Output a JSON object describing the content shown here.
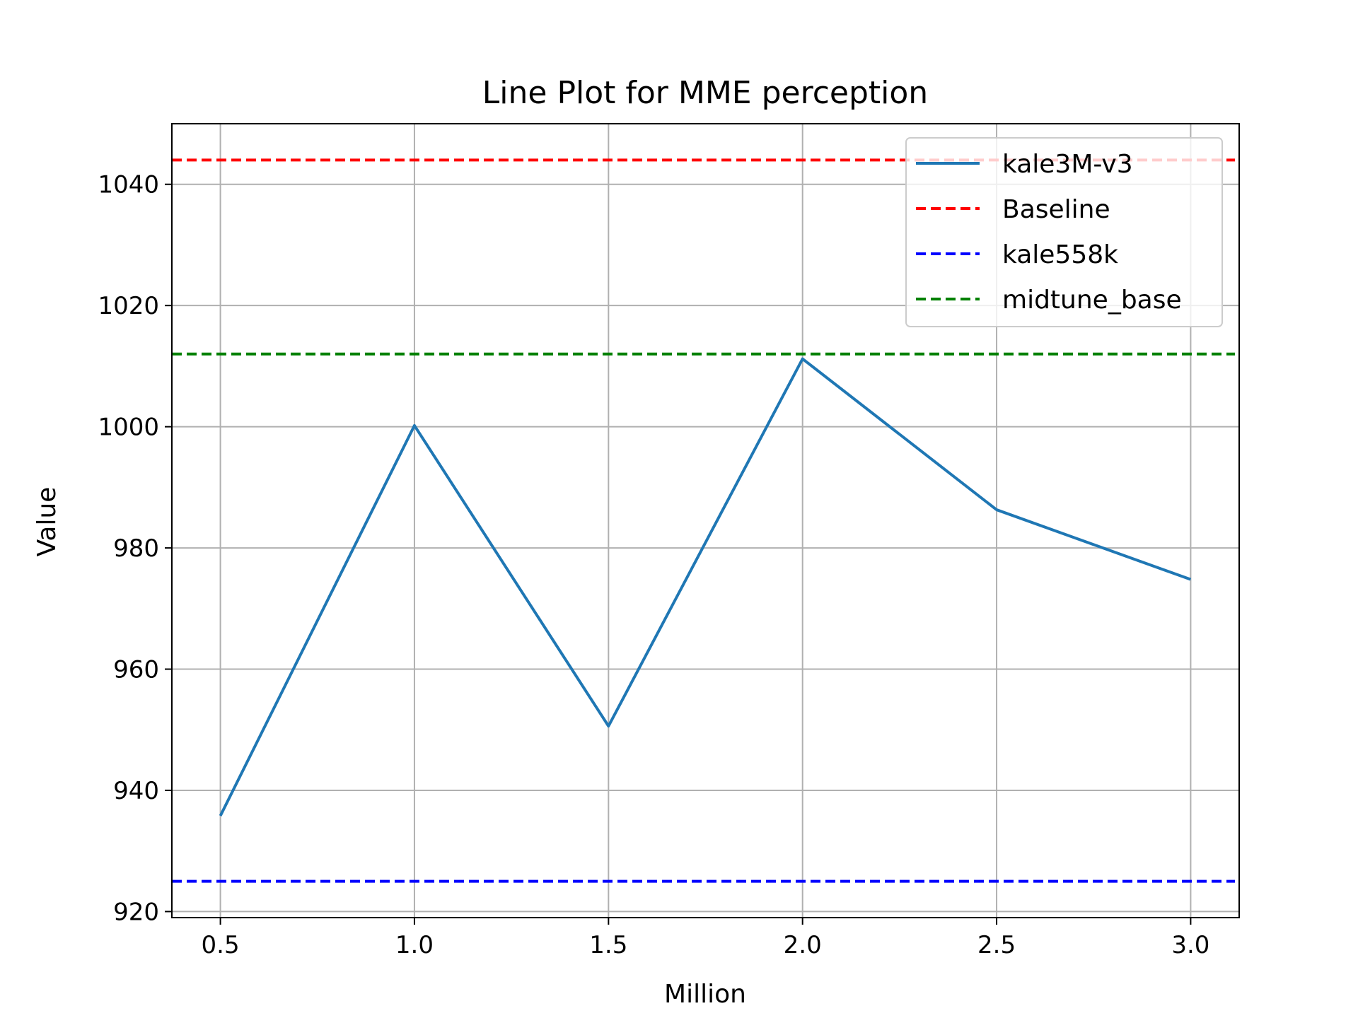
{
  "chart_data": {
    "type": "line",
    "title": "Line Plot for MME perception",
    "xlabel": "Million",
    "ylabel": "Value",
    "xlim": [
      0.375,
      3.125
    ],
    "ylim": [
      919,
      1050
    ],
    "x_ticks": [
      0.5,
      1.0,
      1.5,
      2.0,
      2.5,
      3.0
    ],
    "x_tick_labels": [
      "0.5",
      "1.0",
      "1.5",
      "2.0",
      "2.5",
      "3.0"
    ],
    "y_ticks": [
      920,
      940,
      960,
      980,
      1000,
      1020,
      1040
    ],
    "y_tick_labels": [
      "920",
      "940",
      "960",
      "980",
      "1000",
      "1020",
      "1040"
    ],
    "grid": true,
    "legend_position": "top-right",
    "series": [
      {
        "name": "kale3M-v3",
        "style": "solid",
        "color": "#1f77b4",
        "x": [
          0.5,
          1.0,
          1.5,
          2.0,
          2.5,
          3.0
        ],
        "values": [
          935.8,
          1000.2,
          950.6,
          1011.2,
          986.3,
          974.8
        ]
      }
    ],
    "reference_lines": [
      {
        "name": "Baseline",
        "style": "dashed",
        "color": "#ff0000",
        "y": 1044.0
      },
      {
        "name": "kale558k",
        "style": "dashed",
        "color": "#0000ff",
        "y": 925.0
      },
      {
        "name": "midtune_base",
        "style": "dashed",
        "color": "#008000",
        "y": 1012.0
      }
    ]
  }
}
